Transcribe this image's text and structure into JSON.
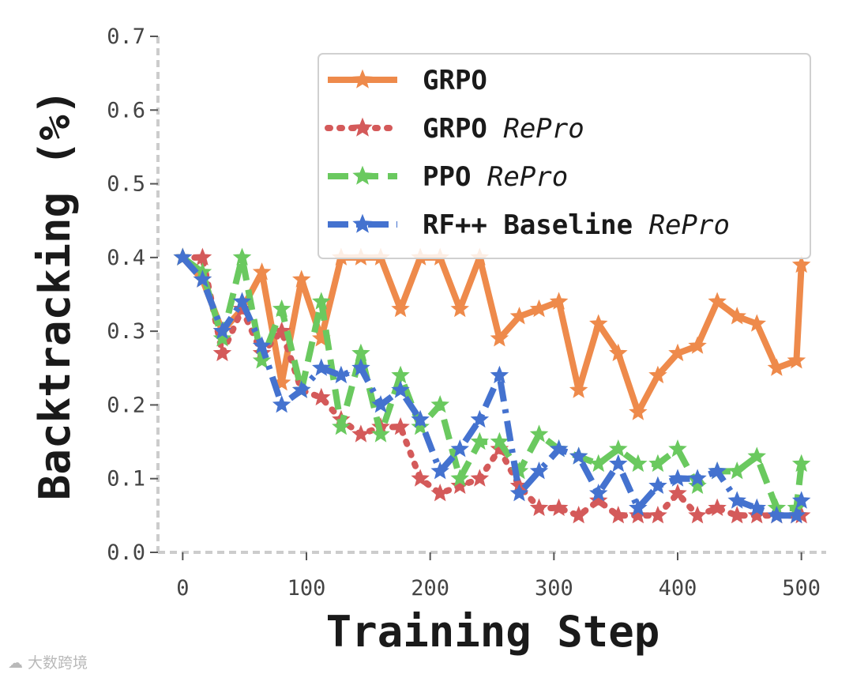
{
  "chart_data": {
    "type": "line",
    "title": "",
    "xlabel": "Training Step",
    "ylabel": "Backtracking (%)",
    "xlim": [
      -20,
      520
    ],
    "ylim": [
      0.0,
      0.7
    ],
    "xticks": [
      0,
      100,
      200,
      300,
      400,
      500
    ],
    "yticks": [
      0.0,
      0.1,
      0.2,
      0.3,
      0.4,
      0.5,
      0.6,
      0.7
    ],
    "xtick_labels": [
      "0",
      "100",
      "200",
      "300",
      "400",
      "500"
    ],
    "ytick_labels": [
      "0.0",
      "0.1",
      "0.2",
      "0.3",
      "0.4",
      "0.5",
      "0.6",
      "0.7"
    ],
    "legend_position": "top-right",
    "series": [
      {
        "name": "GRPO",
        "name_suffix": "",
        "color": "#ee8a4b",
        "dash": "solid",
        "x": [
          0,
          16,
          32,
          48,
          64,
          80,
          96,
          112,
          128,
          144,
          160,
          176,
          192,
          208,
          224,
          240,
          256,
          272,
          288,
          304,
          320,
          336,
          352,
          368,
          384,
          400,
          416,
          432,
          448,
          464,
          480,
          496,
          500
        ],
        "y": [
          0.4,
          0.37,
          0.3,
          0.33,
          0.38,
          0.23,
          0.37,
          0.29,
          0.4,
          0.4,
          0.4,
          0.33,
          0.4,
          0.4,
          0.33,
          0.4,
          0.29,
          0.32,
          0.33,
          0.34,
          0.22,
          0.31,
          0.27,
          0.19,
          0.24,
          0.27,
          0.28,
          0.34,
          0.32,
          0.31,
          0.25,
          0.26,
          0.39
        ]
      },
      {
        "name": "GRPO",
        "name_suffix": "RePro",
        "color": "#d45a5a",
        "dash": "dotted",
        "x": [
          0,
          16,
          32,
          48,
          64,
          80,
          96,
          112,
          128,
          144,
          160,
          176,
          192,
          208,
          224,
          240,
          256,
          272,
          288,
          304,
          320,
          336,
          352,
          368,
          384,
          400,
          416,
          432,
          448,
          464,
          480,
          496,
          500
        ],
        "y": [
          0.4,
          0.4,
          0.27,
          0.33,
          0.27,
          0.3,
          0.22,
          0.21,
          0.18,
          0.16,
          0.17,
          0.17,
          0.1,
          0.08,
          0.09,
          0.1,
          0.14,
          0.09,
          0.06,
          0.06,
          0.05,
          0.07,
          0.05,
          0.05,
          0.05,
          0.08,
          0.05,
          0.06,
          0.05,
          0.05,
          0.05,
          0.05,
          0.05
        ]
      },
      {
        "name": "PPO",
        "name_suffix": "RePro",
        "color": "#6ac95f",
        "dash": "dashed",
        "x": [
          0,
          16,
          32,
          48,
          64,
          80,
          96,
          112,
          128,
          144,
          160,
          176,
          192,
          208,
          224,
          240,
          256,
          272,
          288,
          304,
          320,
          336,
          352,
          368,
          384,
          400,
          416,
          432,
          448,
          464,
          480,
          496,
          500
        ],
        "y": [
          0.4,
          0.38,
          0.29,
          0.4,
          0.26,
          0.33,
          0.22,
          0.34,
          0.17,
          0.27,
          0.16,
          0.24,
          0.17,
          0.2,
          0.1,
          0.15,
          0.15,
          0.11,
          0.16,
          0.14,
          0.13,
          0.12,
          0.14,
          0.12,
          0.12,
          0.14,
          0.09,
          0.11,
          0.11,
          0.13,
          0.06,
          0.06,
          0.12
        ]
      },
      {
        "name": "RF++ Baseline",
        "name_suffix": "RePro",
        "color": "#4472cf",
        "dash": "dashdot",
        "x": [
          0,
          16,
          32,
          48,
          64,
          80,
          96,
          112,
          128,
          144,
          160,
          176,
          192,
          208,
          224,
          240,
          256,
          272,
          288,
          304,
          320,
          336,
          352,
          368,
          384,
          400,
          416,
          432,
          448,
          464,
          480,
          496,
          500
        ],
        "y": [
          0.4,
          0.37,
          0.3,
          0.34,
          0.28,
          0.2,
          0.22,
          0.25,
          0.24,
          0.25,
          0.2,
          0.22,
          0.18,
          0.11,
          0.14,
          0.18,
          0.24,
          0.08,
          0.11,
          0.14,
          0.13,
          0.08,
          0.12,
          0.06,
          0.09,
          0.1,
          0.1,
          0.11,
          0.07,
          0.06,
          0.05,
          0.05,
          0.07
        ]
      }
    ]
  },
  "watermark": "大数跨境"
}
